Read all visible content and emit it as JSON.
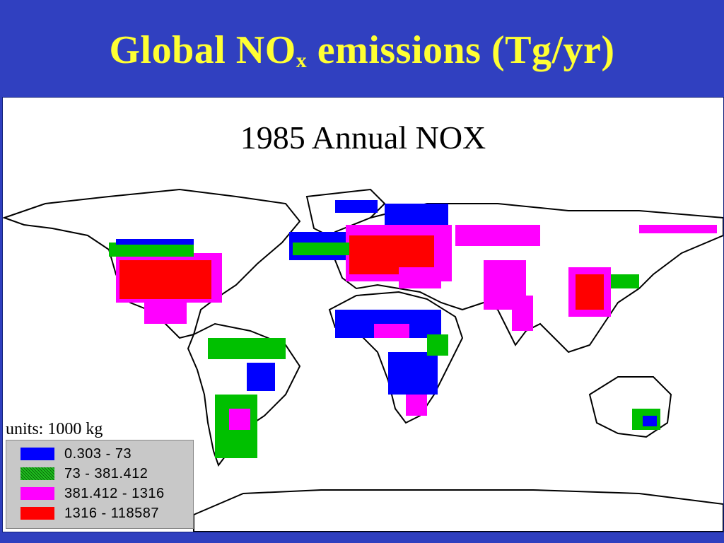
{
  "slide": {
    "title_main": "Global NO",
    "title_sub": "x",
    "title_rest": " emissions (Tg/yr)"
  },
  "map": {
    "title": "1985 Annual NOX",
    "units": "units: 1000 kg",
    "legend": [
      {
        "label": "0.303 - 73",
        "color": "#0000ff"
      },
      {
        "label": "73 - 381.412",
        "color": "#00c000"
      },
      {
        "label": "381.412 - 1316",
        "color": "#ff00ff"
      },
      {
        "label": "1316 - 118587",
        "color": "#ff0000"
      }
    ]
  }
}
